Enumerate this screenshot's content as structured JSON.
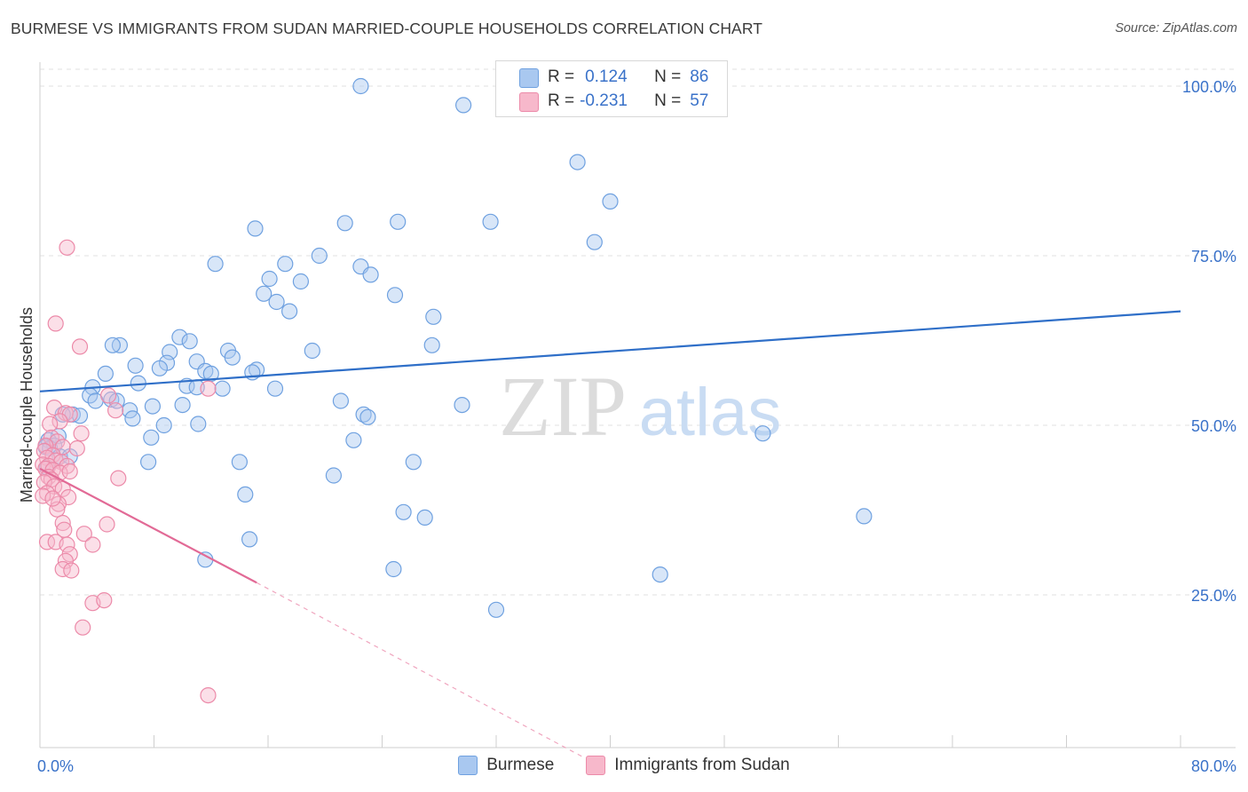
{
  "title": "BURMESE VS IMMIGRANTS FROM SUDAN MARRIED-COUPLE HOUSEHOLDS CORRELATION CHART",
  "source": "Source: ZipAtlas.com",
  "watermark": {
    "zip": "ZIP",
    "atlas": "atlas"
  },
  "stats": [
    {
      "r_label": "R =",
      "r_value": "0.124",
      "n_label": "N =",
      "n_value": "86",
      "color": "#a9c8f0",
      "border": "#6fa1e0",
      "text_color": "#3a72c9"
    },
    {
      "r_label": "R =",
      "r_value": "-0.231",
      "n_label": "N =",
      "n_value": "57",
      "color": "#f7b8cb",
      "border": "#ec8aa9",
      "text_color": "#3a72c9"
    }
  ],
  "legend": [
    {
      "label": "Burmese",
      "color": "#a9c8f0",
      "border": "#6fa1e0"
    },
    {
      "label": "Immigrants from Sudan",
      "color": "#f7b8cb",
      "border": "#ec8aa9"
    }
  ],
  "chart_data": {
    "type": "scatter",
    "title": "BURMESE VS IMMIGRANTS FROM SUDAN MARRIED-COUPLE HOUSEHOLDS CORRELATION CHART",
    "xlabel": "",
    "ylabel": "Married-couple Households",
    "xlim": [
      0,
      80
    ],
    "ylim": [
      0,
      102
    ],
    "x_ticks": [
      {
        "value": 0,
        "label": "0.0%"
      },
      {
        "value": 80,
        "label": "80.0%"
      }
    ],
    "y_ticks": [
      {
        "value": 25,
        "label": "25.0%"
      },
      {
        "value": 50,
        "label": "50.0%"
      },
      {
        "value": 75,
        "label": "75.0%"
      },
      {
        "value": 100,
        "label": "100.0%"
      }
    ],
    "grid": true,
    "legend_position": "bottom",
    "series": [
      {
        "name": "Burmese",
        "color": "#6fa1e0",
        "fill": "rgba(169,200,240,0.45)",
        "trend": {
          "x": [
            0,
            80
          ],
          "y": [
            55.0,
            66.8
          ],
          "color": "#2f6fc8"
        },
        "points": [
          [
            22.5,
            100.0
          ],
          [
            29.7,
            97.2
          ],
          [
            37.7,
            88.8
          ],
          [
            40.0,
            83.0
          ],
          [
            15.1,
            79.0
          ],
          [
            21.4,
            79.8
          ],
          [
            25.1,
            80.0
          ],
          [
            31.6,
            80.0
          ],
          [
            38.9,
            77.0
          ],
          [
            17.2,
            73.8
          ],
          [
            19.6,
            75.0
          ],
          [
            12.3,
            73.8
          ],
          [
            22.5,
            73.4
          ],
          [
            23.2,
            72.2
          ],
          [
            16.1,
            71.6
          ],
          [
            18.3,
            71.2
          ],
          [
            15.7,
            69.4
          ],
          [
            16.6,
            68.2
          ],
          [
            24.9,
            69.2
          ],
          [
            17.5,
            66.8
          ],
          [
            27.6,
            66.0
          ],
          [
            9.8,
            63.0
          ],
          [
            10.5,
            62.4
          ],
          [
            5.6,
            61.8
          ],
          [
            5.1,
            61.8
          ],
          [
            13.2,
            61.0
          ],
          [
            19.1,
            61.0
          ],
          [
            27.5,
            61.8
          ],
          [
            9.1,
            60.8
          ],
          [
            13.5,
            60.0
          ],
          [
            11.0,
            59.4
          ],
          [
            8.9,
            59.2
          ],
          [
            6.7,
            58.8
          ],
          [
            8.4,
            58.4
          ],
          [
            15.2,
            58.2
          ],
          [
            11.6,
            58.0
          ],
          [
            14.9,
            57.8
          ],
          [
            4.6,
            57.6
          ],
          [
            12.0,
            57.6
          ],
          [
            6.9,
            56.2
          ],
          [
            10.3,
            55.8
          ],
          [
            3.7,
            55.6
          ],
          [
            11.0,
            55.6
          ],
          [
            12.8,
            55.4
          ],
          [
            16.5,
            55.4
          ],
          [
            3.5,
            54.4
          ],
          [
            5.0,
            53.8
          ],
          [
            5.4,
            53.6
          ],
          [
            3.9,
            53.6
          ],
          [
            21.1,
            53.6
          ],
          [
            29.6,
            53.0
          ],
          [
            7.9,
            52.8
          ],
          [
            10.0,
            53.0
          ],
          [
            6.3,
            52.2
          ],
          [
            22.7,
            51.6
          ],
          [
            2.3,
            51.6
          ],
          [
            1.6,
            51.6
          ],
          [
            2.8,
            51.4
          ],
          [
            6.5,
            51.0
          ],
          [
            23.0,
            51.2
          ],
          [
            8.7,
            50.0
          ],
          [
            11.1,
            50.2
          ],
          [
            7.8,
            48.2
          ],
          [
            1.3,
            48.4
          ],
          [
            0.6,
            47.8
          ],
          [
            22.0,
            47.8
          ],
          [
            50.7,
            48.8
          ],
          [
            1.0,
            47.0
          ],
          [
            0.4,
            46.8
          ],
          [
            0.7,
            46.6
          ],
          [
            1.4,
            45.4
          ],
          [
            2.1,
            45.4
          ],
          [
            7.6,
            44.6
          ],
          [
            14.0,
            44.6
          ],
          [
            26.2,
            44.6
          ],
          [
            20.6,
            42.6
          ],
          [
            0.5,
            43.8
          ],
          [
            14.4,
            39.8
          ],
          [
            25.5,
            37.2
          ],
          [
            27.0,
            36.4
          ],
          [
            57.8,
            36.6
          ],
          [
            14.7,
            33.2
          ],
          [
            11.6,
            30.2
          ],
          [
            24.8,
            28.8
          ],
          [
            43.5,
            28.0
          ],
          [
            32.0,
            22.8
          ]
        ]
      },
      {
        "name": "Immigrants from Sudan",
        "color": "#ec8aa9",
        "fill": "rgba(247,184,203,0.45)",
        "trend": {
          "x": [
            0,
            15.2
          ],
          "y": [
            43.6,
            26.8
          ],
          "color": "#e26a96"
        },
        "trend_dashed": {
          "x": [
            15.2,
            38.0
          ],
          "y": [
            26.8,
            1.2
          ]
        },
        "points": [
          [
            1.9,
            76.2
          ],
          [
            1.1,
            65.0
          ],
          [
            2.8,
            61.6
          ],
          [
            11.8,
            55.4
          ],
          [
            4.8,
            54.4
          ],
          [
            1.0,
            52.6
          ],
          [
            5.3,
            52.2
          ],
          [
            1.8,
            51.8
          ],
          [
            2.1,
            51.6
          ],
          [
            1.4,
            50.6
          ],
          [
            0.7,
            50.2
          ],
          [
            2.9,
            48.8
          ],
          [
            0.8,
            48.2
          ],
          [
            1.2,
            47.6
          ],
          [
            0.4,
            47.0
          ],
          [
            1.6,
            46.8
          ],
          [
            2.6,
            46.6
          ],
          [
            0.3,
            46.2
          ],
          [
            0.9,
            45.6
          ],
          [
            0.5,
            45.2
          ],
          [
            1.1,
            44.8
          ],
          [
            1.5,
            44.6
          ],
          [
            0.2,
            44.2
          ],
          [
            0.6,
            44.0
          ],
          [
            1.9,
            44.0
          ],
          [
            0.4,
            43.6
          ],
          [
            0.9,
            43.4
          ],
          [
            1.4,
            43.0
          ],
          [
            2.1,
            43.2
          ],
          [
            0.6,
            42.4
          ],
          [
            0.8,
            42.0
          ],
          [
            5.5,
            42.2
          ],
          [
            0.3,
            41.6
          ],
          [
            1.0,
            41.0
          ],
          [
            1.6,
            40.6
          ],
          [
            0.5,
            40.0
          ],
          [
            0.2,
            39.6
          ],
          [
            2.0,
            39.4
          ],
          [
            1.3,
            38.4
          ],
          [
            1.2,
            37.6
          ],
          [
            1.6,
            35.6
          ],
          [
            4.7,
            35.4
          ],
          [
            1.7,
            34.6
          ],
          [
            3.1,
            34.0
          ],
          [
            0.5,
            32.8
          ],
          [
            1.1,
            32.8
          ],
          [
            1.9,
            32.4
          ],
          [
            3.7,
            32.4
          ],
          [
            2.1,
            31.0
          ],
          [
            1.8,
            30.0
          ],
          [
            1.6,
            28.8
          ],
          [
            2.2,
            28.6
          ],
          [
            3.7,
            23.8
          ],
          [
            4.5,
            24.2
          ],
          [
            3.0,
            20.2
          ],
          [
            11.8,
            10.2
          ],
          [
            0.9,
            39.2
          ]
        ]
      }
    ]
  }
}
